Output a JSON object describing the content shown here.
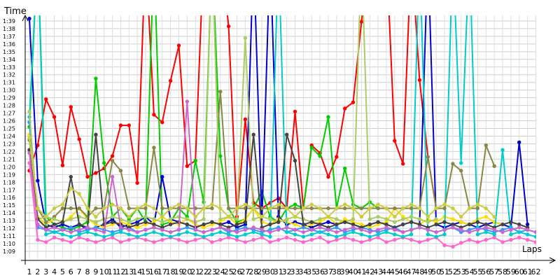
{
  "chart_data": {
    "type": "line",
    "ylabel": "Time",
    "xlabel": "Laps",
    "ylim_seconds": [
      68,
      101
    ],
    "xlim": [
      1,
      62
    ],
    "x_ticks": [
      1,
      2,
      3,
      4,
      5,
      6,
      7,
      8,
      9,
      10,
      11,
      12,
      13,
      14,
      15,
      16,
      17,
      18,
      19,
      20,
      21,
      22,
      23,
      24,
      25,
      26,
      27,
      28,
      29,
      30,
      31,
      32,
      33,
      34,
      35,
      36,
      37,
      38,
      39,
      40,
      41,
      42,
      43,
      44,
      45,
      46,
      47,
      48,
      49,
      50,
      51,
      52,
      53,
      54,
      55,
      56,
      57,
      58,
      59,
      60,
      61,
      62
    ],
    "y_ticks": [
      69,
      70,
      71,
      72,
      73,
      74,
      75,
      76,
      77,
      78,
      79,
      80,
      81,
      82,
      83,
      84,
      85,
      86,
      87,
      88,
      89,
      90,
      91,
      92,
      93,
      94,
      95,
      96,
      97,
      98,
      99
    ],
    "y_tick_labels": [
      "1:09",
      "1:10",
      "1:11",
      "1:12",
      "1:13",
      "1:14",
      "1:15",
      "1:16",
      "1:17",
      "1:18",
      "1:19",
      "1:20",
      "1:21",
      "1:22",
      "1:23",
      "1:24",
      "1:25",
      "1:26",
      "1:27",
      "1:28",
      "1:29",
      "1:30",
      "1:31",
      "1:32",
      "1:33",
      "1:34",
      "1:35",
      "1:36",
      "1:37",
      "1:38",
      "1:39"
    ],
    "grid": true,
    "series": [
      {
        "color": "#ff0000",
        "values": [
          79.5,
          82.8,
          88.8,
          86.5,
          80.2,
          87.8,
          83.6,
          78.7,
          79.2,
          79.8,
          81.4,
          85.4,
          85.4,
          77.9,
          108,
          86.8,
          85.8,
          91.2,
          95.8,
          80.1,
          80.8,
          108,
          108,
          108,
          98.3,
          73.5,
          86.2,
          75.3,
          74.6,
          75.3,
          75.9,
          74.6,
          87.2,
          74.6,
          82.8,
          81.8,
          78.7,
          81.3,
          87.6,
          88.4,
          98.9,
          108,
          108,
          108,
          83.4,
          80.4,
          108,
          91.3,
          81.3,
          74.6,
          null,
          null,
          null,
          null,
          null,
          null,
          null,
          null,
          null,
          null,
          null,
          null
        ]
      },
      {
        "color": "#00cc00",
        "values": [
          85.2,
          108,
          73.5,
          72.5,
          72.1,
          71.8,
          72.3,
          72.8,
          91.5,
          80.5,
          73.5,
          74.6,
          73.2,
          74.6,
          72.8,
          108,
          72.5,
          72.8,
          74.6,
          73.5,
          80.8,
          75.4,
          108,
          81.4,
          74.6,
          72.8,
          73.2,
          74.6,
          76.8,
          73.5,
          72.8,
          74.6,
          75.1,
          74.6,
          82.5,
          81.4,
          86.5,
          74.6,
          79.8,
          75.1,
          74.6,
          75.4,
          74.6,
          null,
          null,
          null,
          null,
          null,
          null,
          null,
          null,
          null,
          null,
          null,
          null,
          null,
          null,
          null,
          null,
          null,
          null,
          null
        ]
      },
      {
        "color": "#0000cc",
        "values": [
          99.3,
          78.2,
          72.5,
          72.1,
          72.5,
          72.1,
          72.5,
          71.8,
          72.1,
          72.5,
          73.2,
          72.1,
          72.5,
          72.8,
          73.5,
          72.5,
          78.7,
          73.2,
          72.8,
          72.5,
          72.1,
          72.5,
          72.8,
          72.5,
          72.8,
          72.1,
          72.5,
          108,
          72.8,
          108,
          73.5,
          72.5,
          72.8,
          72.5,
          72.1,
          72.5,
          72.8,
          72.5,
          72.8,
          72.5,
          72.1,
          72.5,
          72.8,
          72.5,
          72.1,
          72.5,
          72.8,
          72.5,
          108,
          72.5,
          72.1,
          72.5,
          72.8,
          72.5,
          72.1,
          72.5,
          72.8,
          72.5,
          72.1,
          83.2,
          72.5,
          null
        ]
      },
      {
        "color": "#ffdd00",
        "values": [
          84.2,
          73.5,
          72.5,
          73.2,
          72.8,
          73.5,
          74.6,
          73.2,
          72.5,
          72.1,
          72.5,
          72.8,
          72.5,
          72.1,
          72.5,
          72.8,
          73.5,
          72.8,
          72.5,
          73.2,
          72.5,
          72.1,
          72.5,
          72.8,
          73.5,
          72.5,
          73.2,
          74.6,
          72.8,
          72.5,
          73.2,
          72.8,
          72.5,
          72.1,
          72.5,
          72.8,
          73.5,
          72.5,
          73.2,
          72.8,
          72.5,
          72.1,
          72.5,
          72.8,
          74.6,
          73.5,
          72.8,
          72.5,
          73.2,
          72.8,
          73.5,
          73.2,
          72.8,
          72.5,
          73.2,
          73.5,
          72.8,
          72.5,
          null,
          null,
          null,
          null
        ]
      },
      {
        "color": "#3399ff",
        "values": [
          85.8,
          72.1,
          71.8,
          71.5,
          71.8,
          72.1,
          71.5,
          71.8,
          72.1,
          71.8,
          71.5,
          71.8,
          72.1,
          71.5,
          71.8,
          72.1,
          71.8,
          71.5,
          71.8,
          72.1,
          71.8,
          71.5,
          71.8,
          72.1,
          71.5,
          71.8,
          72.1,
          71.8,
          71.5,
          71.8,
          72.1,
          71.5,
          71.8,
          72.1,
          71.8,
          71.5,
          71.8,
          72.1,
          71.5,
          71.8,
          72.1,
          71.8,
          71.5,
          71.8,
          72.1,
          71.5,
          71.8,
          72.1,
          71.8,
          71.5,
          71.8,
          72.1,
          71.5,
          71.8,
          72.1,
          71.8,
          71.5,
          71.8,
          72.1,
          71.5,
          71.8,
          71.5
        ]
      },
      {
        "color": "#ff66cc",
        "values": [
          80.5,
          70.5,
          70.2,
          70.8,
          70.5,
          70.2,
          70.8,
          70.5,
          70.2,
          70.5,
          70.8,
          70.2,
          70.5,
          70.8,
          70.5,
          70.2,
          70.5,
          70.8,
          70.5,
          70.2,
          70.5,
          70.8,
          70.2,
          70.5,
          70.8,
          70.5,
          70.2,
          70.5,
          70.8,
          70.2,
          70.5,
          70.8,
          70.5,
          70.2,
          70.5,
          70.8,
          70.2,
          70.5,
          70.8,
          70.5,
          70.2,
          70.5,
          70.8,
          70.2,
          70.5,
          70.8,
          70.5,
          70.2,
          70.5,
          70.8,
          69.8,
          69.6,
          70.1,
          70.5,
          70.2,
          70.5,
          70.8,
          70.2,
          70.5,
          70.8,
          70.5,
          70.2
        ]
      },
      {
        "color": "#00cccc",
        "values": [
          86.5,
          108,
          71.2,
          71.5,
          71.2,
          70.9,
          71.2,
          71.5,
          71.2,
          70.9,
          71.2,
          71.5,
          71.2,
          70.9,
          71.2,
          71.5,
          71.2,
          70.9,
          71.2,
          71.5,
          71.2,
          70.9,
          71.2,
          71.5,
          71.2,
          70.9,
          71.2,
          71.5,
          71.2,
          70.9,
          108,
          71.5,
          71.2,
          70.9,
          71.2,
          71.5,
          71.2,
          70.9,
          71.2,
          71.5,
          71.2,
          70.9,
          71.2,
          71.5,
          71.2,
          70.9,
          71.2,
          108,
          71.2,
          70.9,
          71.2,
          108,
          80.5,
          108,
          71.2,
          71.5,
          71.2,
          82.2,
          71.2,
          71.5,
          71.2,
          70.9
        ]
      },
      {
        "color": "#888844",
        "values": [
          83.5,
          74.6,
          72.8,
          73.5,
          74.6,
          74.6,
          74.6,
          73.5,
          74.6,
          74.6,
          80.8,
          79.5,
          74.6,
          74.6,
          74.6,
          82.5,
          74.6,
          74.6,
          74.6,
          74.6,
          74.6,
          74.6,
          74.6,
          89.8,
          74.6,
          74.6,
          74.6,
          74.6,
          74.6,
          74.6,
          74.6,
          74.6,
          74.6,
          74.6,
          74.6,
          74.6,
          74.6,
          74.6,
          74.6,
          74.6,
          74.6,
          74.6,
          74.6,
          74.6,
          74.6,
          74.6,
          74.6,
          74.6,
          81.3,
          74.6,
          74.6,
          80.4,
          79.5,
          74.6,
          74.6,
          82.8,
          80.1,
          null,
          null,
          null,
          null,
          null
        ]
      },
      {
        "color": "#aacc66",
        "values": [
          87.2,
          73.2,
          73.5,
          73.2,
          72.8,
          73.2,
          73.5,
          73.2,
          72.8,
          73.2,
          73.5,
          73.2,
          72.8,
          73.2,
          73.5,
          73.2,
          72.8,
          73.2,
          73.5,
          73.2,
          72.8,
          73.2,
          108,
          73.2,
          73.5,
          73.2,
          96.8,
          73.2,
          73.5,
          73.2,
          72.8,
          73.2,
          73.5,
          73.2,
          72.8,
          73.2,
          73.5,
          73.2,
          72.8,
          73.2,
          108,
          73.2,
          73.5,
          73.2,
          72.8,
          73.2,
          73.5,
          73.2,
          72.8,
          73.2,
          null,
          null,
          null,
          null,
          null,
          null,
          null,
          null,
          null,
          null,
          null,
          null
        ]
      },
      {
        "color": "#444444",
        "values": [
          82.2,
          73.2,
          72.1,
          72.5,
          72.8,
          78.7,
          72.5,
          72.1,
          84.2,
          72.5,
          72.8,
          72.5,
          72.1,
          72.5,
          72.8,
          72.5,
          72.1,
          72.5,
          72.8,
          72.5,
          72.1,
          72.5,
          72.8,
          72.5,
          72.1,
          72.5,
          72.8,
          84.2,
          72.1,
          72.5,
          72.8,
          84.2,
          80.8,
          72.5,
          72.8,
          72.5,
          72.1,
          72.5,
          72.8,
          72.5,
          72.1,
          72.5,
          72.8,
          72.5,
          72.1,
          72.5,
          72.8,
          72.5,
          72.1,
          72.5,
          72.8,
          72.5,
          72.1,
          72.5,
          72.8,
          72.5,
          72.1,
          72.5,
          72.8,
          72.5,
          72.1,
          null
        ]
      },
      {
        "color": "#cc66cc",
        "values": [
          81.8,
          72.5,
          71.8,
          72.1,
          71.8,
          71.5,
          71.8,
          72.1,
          71.8,
          71.5,
          78.7,
          72.1,
          71.8,
          71.5,
          71.8,
          72.1,
          71.8,
          71.5,
          71.8,
          88.5,
          71.8,
          71.5,
          71.8,
          72.1,
          71.8,
          71.5,
          71.8,
          72.1,
          71.8,
          71.5,
          71.8,
          72.1,
          71.8,
          71.5,
          71.8,
          72.1,
          71.8,
          71.5,
          71.8,
          72.1,
          71.8,
          71.5,
          71.8,
          72.1,
          71.8,
          71.5,
          71.8,
          72.1,
          71.8,
          71.5,
          71.8,
          72.1,
          71.8,
          71.5,
          71.8,
          72.1,
          71.8,
          71.5,
          71.8,
          72.1,
          71.8,
          71.5
        ]
      },
      {
        "color": "#cccc44",
        "values": [
          83.8,
          74.6,
          73.5,
          74.6,
          75.1,
          77.2,
          76.5,
          74.6,
          73.5,
          74.6,
          75.1,
          74.6,
          73.5,
          74.6,
          75.1,
          74.6,
          73.5,
          74.6,
          75.1,
          74.6,
          73.5,
          74.6,
          75.1,
          74.6,
          73.5,
          74.6,
          75.1,
          74.6,
          73.5,
          74.6,
          75.1,
          74.6,
          73.5,
          74.6,
          75.1,
          74.6,
          73.5,
          74.6,
          75.1,
          74.6,
          73.5,
          74.6,
          75.1,
          74.6,
          73.5,
          74.6,
          75.1,
          74.6,
          73.5,
          74.6,
          75.1,
          74.6,
          73.5,
          74.6,
          75.1,
          74.6,
          73.5,
          null,
          null,
          null,
          null,
          null
        ]
      }
    ]
  }
}
